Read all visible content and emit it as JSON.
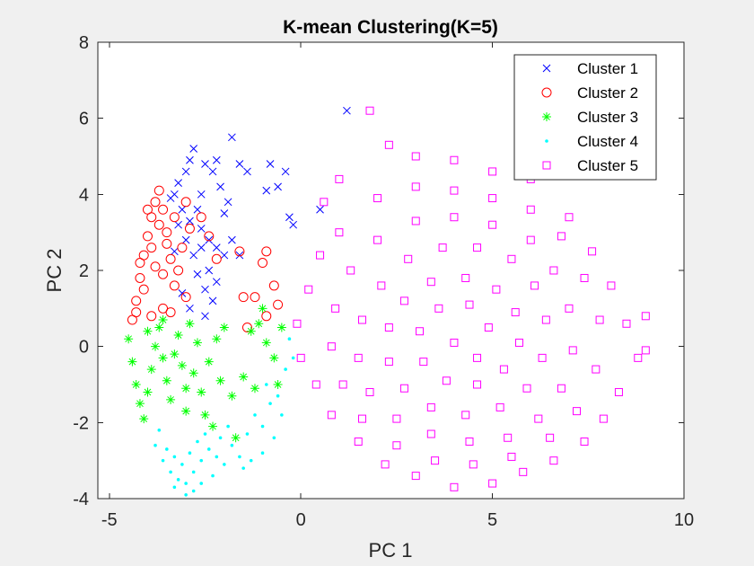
{
  "chart_data": {
    "type": "scatter",
    "title": "K-mean Clustering(K=5)",
    "xlabel": "PC 1",
    "ylabel": "PC 2",
    "xlim": [
      -5.3,
      10.0
    ],
    "ylim": [
      -4,
      8
    ],
    "xticks": [
      -5,
      0,
      5,
      10
    ],
    "yticks": [
      -4,
      -2,
      0,
      2,
      4,
      6,
      8
    ],
    "grid": false,
    "legend_location": "top-right",
    "series": [
      {
        "name": "Cluster 1",
        "marker": "x",
        "color": "#0000ff",
        "points": [
          [
            -3.2,
            4.3
          ],
          [
            -3.0,
            4.6
          ],
          [
            -2.8,
            5.2
          ],
          [
            -2.5,
            4.8
          ],
          [
            -2.2,
            4.9
          ],
          [
            -1.8,
            5.5
          ],
          [
            -1.6,
            4.8
          ],
          [
            -1.4,
            4.6
          ],
          [
            -0.8,
            4.8
          ],
          [
            -0.4,
            4.6
          ],
          [
            -0.6,
            4.2
          ],
          [
            -0.9,
            4.1
          ],
          [
            -0.3,
            3.4
          ],
          [
            -0.2,
            3.2
          ],
          [
            0.5,
            3.6
          ],
          [
            1.2,
            6.2
          ],
          [
            -3.4,
            3.9
          ],
          [
            -3.1,
            3.6
          ],
          [
            -2.9,
            3.3
          ],
          [
            -2.6,
            3.1
          ],
          [
            -2.4,
            2.8
          ],
          [
            -2.2,
            2.6
          ],
          [
            -2.0,
            2.4
          ],
          [
            -2.7,
            1.9
          ],
          [
            -2.5,
            1.5
          ],
          [
            -2.3,
            1.2
          ],
          [
            -2.9,
            1.0
          ],
          [
            -3.1,
            1.4
          ],
          [
            -2.0,
            3.5
          ],
          [
            -1.8,
            2.8
          ],
          [
            -2.6,
            4.0
          ],
          [
            -2.1,
            4.2
          ],
          [
            -3.3,
            4.0
          ],
          [
            -2.8,
            2.4
          ],
          [
            -2.4,
            2.0
          ],
          [
            -3.0,
            2.8
          ],
          [
            -2.2,
            1.7
          ],
          [
            -2.5,
            0.8
          ],
          [
            -1.6,
            2.4
          ],
          [
            -3.3,
            2.5
          ],
          [
            -2.7,
            3.6
          ],
          [
            -1.9,
            3.8
          ],
          [
            -2.3,
            4.6
          ],
          [
            -2.9,
            4.9
          ],
          [
            -3.2,
            3.2
          ],
          [
            -2.6,
            2.6
          ]
        ]
      },
      {
        "name": "Cluster 2",
        "marker": "o",
        "color": "#ff0000",
        "points": [
          [
            -4.4,
            0.7
          ],
          [
            -4.3,
            1.2
          ],
          [
            -4.2,
            1.8
          ],
          [
            -4.1,
            2.4
          ],
          [
            -4.0,
            2.9
          ],
          [
            -3.9,
            3.4
          ],
          [
            -3.8,
            3.8
          ],
          [
            -3.7,
            4.1
          ],
          [
            -3.6,
            3.6
          ],
          [
            -3.5,
            3.0
          ],
          [
            -3.4,
            2.3
          ],
          [
            -3.3,
            1.6
          ],
          [
            -3.6,
            1.0
          ],
          [
            -3.9,
            0.8
          ],
          [
            -4.1,
            1.5
          ],
          [
            -3.8,
            2.1
          ],
          [
            -3.5,
            2.7
          ],
          [
            -3.7,
            3.2
          ],
          [
            -4.0,
            3.6
          ],
          [
            -3.2,
            2.0
          ],
          [
            -3.1,
            2.6
          ],
          [
            -2.9,
            3.1
          ],
          [
            -2.6,
            3.4
          ],
          [
            -2.4,
            2.9
          ],
          [
            -2.2,
            2.3
          ],
          [
            -3.0,
            1.3
          ],
          [
            -3.4,
            0.9
          ],
          [
            -1.6,
            2.5
          ],
          [
            -1.0,
            2.2
          ],
          [
            -0.9,
            2.5
          ],
          [
            -1.2,
            1.3
          ],
          [
            -1.5,
            1.3
          ],
          [
            -0.6,
            1.1
          ],
          [
            -0.9,
            0.8
          ],
          [
            -1.4,
            0.5
          ],
          [
            -0.7,
            1.6
          ],
          [
            -3.9,
            2.6
          ],
          [
            -4.2,
            2.2
          ],
          [
            -3.6,
            1.9
          ],
          [
            -4.3,
            0.9
          ],
          [
            -3.3,
            3.4
          ],
          [
            -3.0,
            3.8
          ]
        ]
      },
      {
        "name": "Cluster 3",
        "marker": "*",
        "color": "#00ff00",
        "points": [
          [
            -4.5,
            0.2
          ],
          [
            -4.4,
            -0.4
          ],
          [
            -4.3,
            -1.0
          ],
          [
            -4.2,
            -1.5
          ],
          [
            -4.1,
            -1.9
          ],
          [
            -4.0,
            -1.2
          ],
          [
            -3.9,
            -0.6
          ],
          [
            -3.8,
            0.0
          ],
          [
            -3.7,
            0.5
          ],
          [
            -3.6,
            -0.3
          ],
          [
            -3.5,
            -0.9
          ],
          [
            -3.4,
            -1.4
          ],
          [
            -3.3,
            -0.2
          ],
          [
            -3.2,
            0.3
          ],
          [
            -3.1,
            -0.5
          ],
          [
            -3.0,
            -1.1
          ],
          [
            -2.9,
            0.6
          ],
          [
            -2.8,
            -0.7
          ],
          [
            -2.6,
            -1.2
          ],
          [
            -2.4,
            -0.4
          ],
          [
            -2.2,
            0.2
          ],
          [
            -2.0,
            0.5
          ],
          [
            -2.1,
            -0.9
          ],
          [
            -1.8,
            -1.3
          ],
          [
            -1.5,
            -0.8
          ],
          [
            -1.3,
            0.4
          ],
          [
            -1.1,
            0.6
          ],
          [
            -0.9,
            0.1
          ],
          [
            -1.2,
            -1.1
          ],
          [
            -1.7,
            -2.4
          ],
          [
            -2.5,
            -1.8
          ],
          [
            -3.0,
            -1.7
          ],
          [
            -2.3,
            -2.1
          ],
          [
            -0.6,
            -1.0
          ],
          [
            -0.5,
            0.5
          ],
          [
            -1.0,
            1.0
          ],
          [
            -0.7,
            -0.3
          ],
          [
            -4.0,
            0.4
          ],
          [
            -3.6,
            0.7
          ],
          [
            -2.7,
            0.1
          ]
        ]
      },
      {
        "name": "Cluster 4",
        "marker": ".",
        "color": "#00ffff",
        "points": [
          [
            -3.8,
            -2.6
          ],
          [
            -3.6,
            -3.0
          ],
          [
            -3.4,
            -3.3
          ],
          [
            -3.2,
            -3.5
          ],
          [
            -3.0,
            -3.6
          ],
          [
            -2.8,
            -3.3
          ],
          [
            -2.6,
            -3.0
          ],
          [
            -2.4,
            -2.7
          ],
          [
            -3.5,
            -2.7
          ],
          [
            -3.3,
            -2.9
          ],
          [
            -3.1,
            -3.1
          ],
          [
            -2.9,
            -2.8
          ],
          [
            -2.7,
            -2.5
          ],
          [
            -2.5,
            -2.3
          ],
          [
            -2.2,
            -2.9
          ],
          [
            -2.0,
            -3.1
          ],
          [
            -1.8,
            -2.6
          ],
          [
            -1.6,
            -2.9
          ],
          [
            -1.4,
            -2.3
          ],
          [
            -1.2,
            -1.8
          ],
          [
            -1.0,
            -2.1
          ],
          [
            -0.8,
            -1.5
          ],
          [
            -0.6,
            -1.3
          ],
          [
            -0.4,
            -0.6
          ],
          [
            -0.3,
            0.2
          ],
          [
            -0.2,
            -0.3
          ],
          [
            -1.5,
            -3.2
          ],
          [
            -2.3,
            -3.4
          ],
          [
            -2.8,
            -3.8
          ],
          [
            -3.0,
            -3.9
          ],
          [
            -1.0,
            -2.8
          ],
          [
            -1.9,
            -2.1
          ],
          [
            -3.7,
            -2.2
          ],
          [
            -0.5,
            -1.8
          ],
          [
            -2.6,
            -3.6
          ],
          [
            -3.3,
            -3.7
          ],
          [
            -2.1,
            -2.4
          ],
          [
            -1.3,
            -3.0
          ],
          [
            -0.9,
            -1.0
          ],
          [
            -0.7,
            -2.4
          ]
        ]
      },
      {
        "name": "Cluster 5",
        "marker": "square",
        "color": "#ff00ff",
        "points": [
          [
            1.8,
            6.2
          ],
          [
            2.3,
            5.3
          ],
          [
            3.0,
            5.0
          ],
          [
            4.0,
            4.9
          ],
          [
            5.0,
            4.6
          ],
          [
            6.0,
            4.4
          ],
          [
            1.0,
            4.4
          ],
          [
            0.6,
            3.8
          ],
          [
            7.0,
            3.4
          ],
          [
            7.6,
            2.5
          ],
          [
            8.1,
            1.6
          ],
          [
            8.5,
            0.6
          ],
          [
            9.0,
            0.8
          ],
          [
            8.8,
            -0.3
          ],
          [
            9.0,
            -0.1
          ],
          [
            8.3,
            -1.2
          ],
          [
            7.9,
            -1.9
          ],
          [
            7.4,
            -2.5
          ],
          [
            6.6,
            -3.0
          ],
          [
            5.8,
            -3.3
          ],
          [
            5.0,
            -3.6
          ],
          [
            4.0,
            -3.7
          ],
          [
            3.0,
            -3.4
          ],
          [
            2.2,
            -3.1
          ],
          [
            1.5,
            -2.5
          ],
          [
            0.8,
            -1.8
          ],
          [
            0.4,
            -1.0
          ],
          [
            0.0,
            -0.3
          ],
          [
            -0.1,
            0.6
          ],
          [
            0.2,
            1.5
          ],
          [
            0.5,
            2.4
          ],
          [
            1.0,
            3.0
          ],
          [
            2.0,
            3.9
          ],
          [
            3.0,
            4.2
          ],
          [
            4.0,
            4.1
          ],
          [
            5.0,
            3.9
          ],
          [
            6.0,
            3.6
          ],
          [
            6.8,
            2.9
          ],
          [
            7.4,
            1.8
          ],
          [
            7.8,
            0.7
          ],
          [
            7.7,
            -0.6
          ],
          [
            7.2,
            -1.7
          ],
          [
            6.5,
            -2.4
          ],
          [
            5.5,
            -2.9
          ],
          [
            4.5,
            -3.1
          ],
          [
            3.5,
            -3.0
          ],
          [
            2.5,
            -2.6
          ],
          [
            1.6,
            -1.9
          ],
          [
            1.1,
            -1.0
          ],
          [
            0.8,
            0.0
          ],
          [
            0.9,
            1.0
          ],
          [
            1.3,
            2.0
          ],
          [
            2.0,
            2.8
          ],
          [
            3.0,
            3.3
          ],
          [
            4.0,
            3.4
          ],
          [
            5.0,
            3.2
          ],
          [
            6.0,
            2.8
          ],
          [
            6.6,
            2.0
          ],
          [
            7.0,
            1.0
          ],
          [
            7.1,
            -0.1
          ],
          [
            6.8,
            -1.1
          ],
          [
            6.2,
            -1.9
          ],
          [
            5.4,
            -2.4
          ],
          [
            4.4,
            -2.5
          ],
          [
            3.4,
            -2.3
          ],
          [
            2.5,
            -1.9
          ],
          [
            1.8,
            -1.2
          ],
          [
            1.5,
            -0.3
          ],
          [
            1.6,
            0.7
          ],
          [
            2.1,
            1.6
          ],
          [
            2.8,
            2.3
          ],
          [
            3.7,
            2.6
          ],
          [
            4.6,
            2.6
          ],
          [
            5.5,
            2.3
          ],
          [
            6.1,
            1.6
          ],
          [
            6.4,
            0.7
          ],
          [
            6.3,
            -0.3
          ],
          [
            5.9,
            -1.1
          ],
          [
            5.2,
            -1.6
          ],
          [
            4.3,
            -1.8
          ],
          [
            3.4,
            -1.6
          ],
          [
            2.7,
            -1.1
          ],
          [
            2.3,
            -0.4
          ],
          [
            2.3,
            0.5
          ],
          [
            2.7,
            1.2
          ],
          [
            3.4,
            1.7
          ],
          [
            4.3,
            1.8
          ],
          [
            5.1,
            1.5
          ],
          [
            5.6,
            0.9
          ],
          [
            5.7,
            0.1
          ],
          [
            5.3,
            -0.6
          ],
          [
            4.6,
            -1.0
          ],
          [
            3.8,
            -0.9
          ],
          [
            3.2,
            -0.4
          ],
          [
            3.1,
            0.4
          ],
          [
            3.6,
            1.0
          ],
          [
            4.4,
            1.1
          ],
          [
            4.9,
            0.5
          ],
          [
            4.6,
            -0.3
          ],
          [
            4.0,
            0.1
          ]
        ]
      }
    ]
  }
}
